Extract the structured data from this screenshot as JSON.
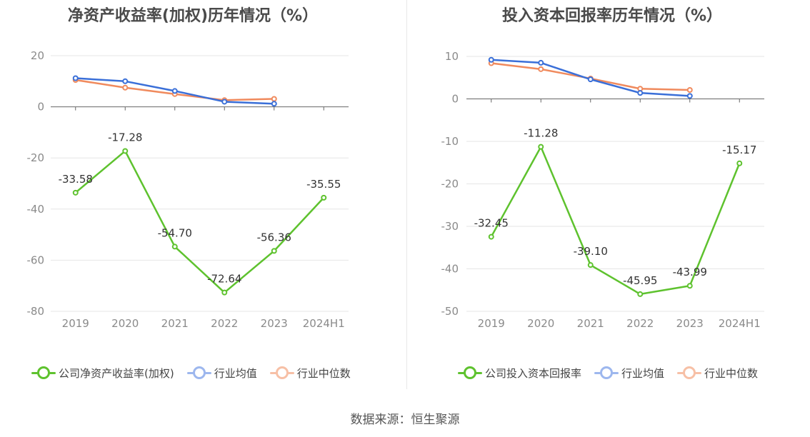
{
  "colors": {
    "company": "#5ec22e",
    "industry_avg": "#3a6fd8",
    "industry_median": "#f08a5d",
    "grid": "#e6e6e6",
    "axis": "#666666",
    "tick_text": "#8a8a8a"
  },
  "chart_data": [
    {
      "type": "line",
      "title": "净资产收益率(加权)历年情况（%）",
      "categories": [
        "2019",
        "2020",
        "2021",
        "2022",
        "2023",
        "2024H1"
      ],
      "yticks": [
        "20",
        "0",
        "-20",
        "-40",
        "-60",
        "-80"
      ],
      "ylim": [
        -80,
        20
      ],
      "grid": true,
      "legend_position": "bottom",
      "series": [
        {
          "name": "公司净资产收益率(加权)",
          "values": [
            -33.58,
            -17.28,
            -54.7,
            -72.64,
            -56.36,
            -35.55
          ],
          "labels": [
            "-33.58",
            "-17.28",
            "-54.70",
            "-72.64",
            "-56.36",
            "-35.55"
          ]
        },
        {
          "name": "行业均值",
          "values": [
            11.2,
            10.0,
            6.2,
            2.0,
            1.2,
            null
          ]
        },
        {
          "name": "行业中位数",
          "values": [
            10.5,
            7.5,
            5.0,
            2.6,
            3.1,
            null
          ]
        }
      ]
    },
    {
      "type": "line",
      "title": "投入资本回报率历年情况（%）",
      "categories": [
        "2019",
        "2020",
        "2021",
        "2022",
        "2023",
        "2024H1"
      ],
      "yticks": [
        "10",
        "0",
        "-10",
        "-20",
        "-30",
        "-40",
        "-50"
      ],
      "ylim": [
        -50,
        10
      ],
      "grid": true,
      "legend_position": "bottom",
      "series": [
        {
          "name": "公司投入资本回报率",
          "values": [
            -32.45,
            -11.28,
            -39.1,
            -45.95,
            -43.99,
            -15.17
          ],
          "labels": [
            "-32.45",
            "-11.28",
            "-39.10",
            "-45.95",
            "-43.99",
            "-15.17"
          ]
        },
        {
          "name": "行业均值",
          "values": [
            9.2,
            8.5,
            4.6,
            1.4,
            0.7,
            null
          ]
        },
        {
          "name": "行业中位数",
          "values": [
            8.4,
            7.0,
            4.8,
            2.4,
            2.1,
            null
          ]
        }
      ]
    }
  ],
  "source": "数据来源：恒生聚源"
}
